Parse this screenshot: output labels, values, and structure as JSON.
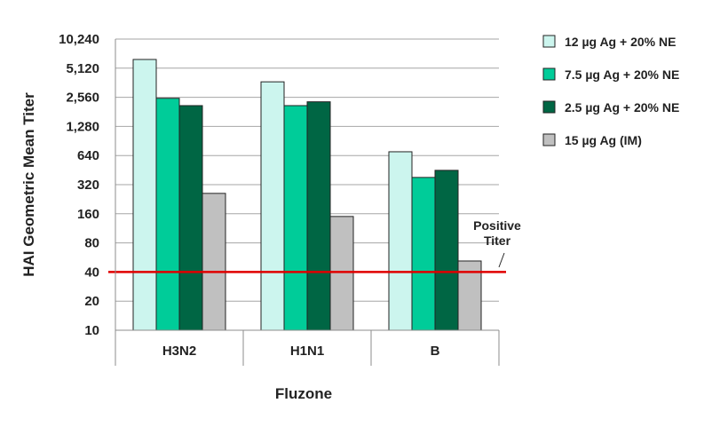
{
  "chart_data": {
    "type": "bar",
    "scale": "log2",
    "ylabel": "HAI Geometric Mean Titer",
    "xlabel": "Fluzone",
    "yticks": [
      10,
      20,
      40,
      80,
      160,
      320,
      640,
      1280,
      2560,
      5120,
      10240
    ],
    "ytick_labels": [
      "10",
      "20",
      "40",
      "80",
      "160",
      "320",
      "640",
      "1,280",
      "2,560",
      "5,120",
      "10,240"
    ],
    "ylim": [
      10,
      10240
    ],
    "categories": [
      "H3N2",
      "H1N1",
      "B"
    ],
    "series": [
      {
        "name": "12 µg Ag + 20% NE",
        "color": "#ccf5ee",
        "values": [
          6300,
          3700,
          700
        ]
      },
      {
        "name": "7.5 µg Ag + 20% NE",
        "color": "#00cc99",
        "values": [
          2500,
          2100,
          380
        ]
      },
      {
        "name": "2.5 µg Ag + 20% NE",
        "color": "#006644",
        "values": [
          2100,
          2300,
          450
        ]
      },
      {
        "name": "15 µg Ag (IM)",
        "color": "#c0c0c0",
        "values": [
          260,
          150,
          52
        ]
      }
    ],
    "reference_line": {
      "value": 40,
      "color": "#e00000",
      "label": [
        "Positive",
        "Titer"
      ]
    },
    "grid": true,
    "legend_position": "right"
  }
}
